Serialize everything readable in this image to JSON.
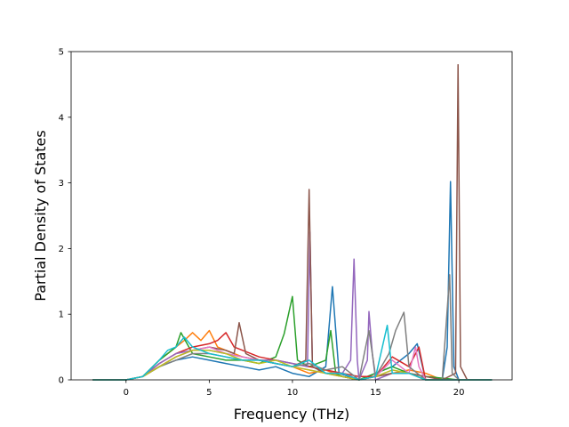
{
  "chart_data": {
    "type": "line",
    "xlabel": "Frequency (THz)",
    "ylabel": "Partial Density of States",
    "xlim": [
      -3.3,
      23.2
    ],
    "ylim": [
      0,
      5
    ],
    "xticks": [
      0,
      5,
      10,
      15,
      20
    ],
    "yticks": [
      0,
      1,
      2,
      3,
      4,
      5
    ],
    "grid": false,
    "legend": "none",
    "series": [
      {
        "color": "#1f77b4",
        "x": [
          -2,
          0,
          1,
          2,
          3,
          4,
          5,
          6,
          7,
          8,
          9,
          10,
          11,
          12,
          12.4,
          12.8,
          14,
          15,
          16,
          17,
          17.5,
          18,
          19,
          19.3,
          19.5,
          19.7,
          20,
          22
        ],
        "y": [
          0,
          0,
          0.05,
          0.2,
          0.3,
          0.35,
          0.3,
          0.25,
          0.2,
          0.15,
          0.2,
          0.1,
          0.05,
          0.2,
          1.42,
          0.1,
          0,
          0.1,
          0.2,
          0.4,
          0.55,
          0,
          0,
          0.5,
          3.02,
          0.2,
          0,
          0
        ]
      },
      {
        "color": "#ff7f0e",
        "x": [
          -2,
          0,
          1,
          2,
          3,
          3.5,
          4,
          4.5,
          5,
          5.5,
          6,
          7,
          8,
          9,
          10,
          11,
          12,
          13,
          14,
          15,
          16,
          17,
          18,
          19,
          20,
          22
        ],
        "y": [
          0,
          0,
          0.05,
          0.3,
          0.5,
          0.6,
          0.72,
          0.6,
          0.75,
          0.5,
          0.45,
          0.35,
          0.3,
          0.25,
          0.2,
          0.1,
          0.15,
          0.05,
          0,
          0.05,
          0.1,
          0.15,
          0.1,
          0,
          0,
          0
        ]
      },
      {
        "color": "#2ca02c",
        "x": [
          -2,
          0,
          1,
          2,
          3,
          3.3,
          4,
          5,
          6,
          7,
          8,
          9,
          9.5,
          10,
          10.3,
          11,
          12,
          12.3,
          12.6,
          13,
          14,
          15,
          16,
          17,
          18,
          20,
          22
        ],
        "y": [
          0,
          0,
          0.05,
          0.3,
          0.5,
          0.72,
          0.4,
          0.35,
          0.3,
          0.3,
          0.25,
          0.35,
          0.7,
          1.27,
          0.3,
          0.2,
          0.3,
          0.75,
          0.1,
          0.05,
          0,
          0.1,
          0.2,
          0.1,
          0.05,
          0,
          0
        ]
      },
      {
        "color": "#d62728",
        "x": [
          -2,
          0,
          1,
          2,
          3,
          4,
          5,
          5.5,
          6,
          6.5,
          7,
          8,
          9,
          10,
          11,
          12,
          13,
          14,
          15,
          16,
          17,
          17.6,
          18,
          20,
          22
        ],
        "y": [
          0,
          0,
          0.05,
          0.25,
          0.4,
          0.5,
          0.55,
          0.6,
          0.72,
          0.5,
          0.45,
          0.35,
          0.3,
          0.25,
          0.2,
          0.15,
          0.1,
          0.05,
          0.05,
          0.35,
          0.2,
          0.5,
          0,
          0,
          0
        ]
      },
      {
        "color": "#9467bd",
        "x": [
          -2,
          0,
          1,
          2,
          3,
          4,
          5,
          6,
          7,
          8,
          9,
          10,
          10.9,
          11.05,
          11.2,
          12,
          13,
          13.5,
          13.7,
          13.9,
          14,
          14.5,
          14.6,
          14.8,
          15,
          16,
          17,
          18,
          20,
          22
        ],
        "y": [
          0,
          0,
          0.05,
          0.25,
          0.4,
          0.45,
          0.45,
          0.4,
          0.35,
          0.3,
          0.3,
          0.25,
          0.2,
          2.25,
          0.2,
          0.1,
          0.1,
          0.3,
          1.84,
          0.3,
          0,
          0.3,
          1.04,
          0.4,
          0,
          0.1,
          0.1,
          0,
          0,
          0
        ]
      },
      {
        "color": "#8c564b",
        "x": [
          -2,
          0,
          1,
          2,
          3,
          4,
          5,
          6,
          6.5,
          6.8,
          7.2,
          8,
          9,
          10,
          10.8,
          11.0,
          11.2,
          12,
          13,
          14,
          15,
          16,
          17,
          18,
          19,
          19.8,
          19.95,
          20.1,
          20.5,
          22
        ],
        "y": [
          0,
          0,
          0.05,
          0.2,
          0.35,
          0.45,
          0.5,
          0.45,
          0.4,
          0.87,
          0.4,
          0.3,
          0.25,
          0.2,
          0.3,
          2.9,
          0.2,
          0.1,
          0.05,
          0,
          0.05,
          0.1,
          0.1,
          0.05,
          0,
          0.1,
          4.8,
          0.2,
          0,
          0
        ]
      },
      {
        "color": "#e377c2",
        "x": [
          -2,
          0,
          1,
          2,
          3,
          4,
          5,
          6,
          7,
          8,
          9,
          10,
          11,
          12,
          13,
          14,
          15,
          16,
          16.5,
          17,
          17.4,
          17.6,
          18,
          20,
          22
        ],
        "y": [
          0,
          0,
          0.05,
          0.2,
          0.35,
          0.45,
          0.5,
          0.4,
          0.35,
          0.3,
          0.25,
          0.2,
          0.15,
          0.1,
          0.1,
          0,
          0.05,
          0.3,
          0.2,
          0.1,
          0.5,
          0.2,
          0,
          0,
          0
        ]
      },
      {
        "color": "#7f7f7f",
        "x": [
          -2,
          0,
          1,
          2,
          3,
          4,
          5,
          6,
          7,
          8,
          9,
          10,
          11,
          12,
          13,
          14,
          14.6,
          15,
          15.8,
          16.2,
          16.7,
          17,
          18,
          19,
          19.45,
          19.6,
          20,
          22
        ],
        "y": [
          0,
          0,
          0.05,
          0.2,
          0.3,
          0.4,
          0.4,
          0.35,
          0.3,
          0.3,
          0.25,
          0.2,
          0.25,
          0.15,
          0.2,
          0,
          0.75,
          0.05,
          0.4,
          0.75,
          1.03,
          0.2,
          0,
          0,
          1.6,
          0.1,
          0,
          0
        ]
      },
      {
        "color": "#bcbd22",
        "x": [
          -2,
          0,
          1,
          2,
          3,
          4,
          5,
          6,
          7,
          8,
          9,
          10,
          11,
          12,
          13,
          14,
          15,
          16,
          17,
          18,
          20,
          22
        ],
        "y": [
          0,
          0,
          0.05,
          0.2,
          0.35,
          0.45,
          0.45,
          0.4,
          0.3,
          0.25,
          0.3,
          0.2,
          0.15,
          0.1,
          0.05,
          0,
          0.05,
          0.15,
          0.1,
          0,
          0,
          0
        ]
      },
      {
        "color": "#17becf",
        "x": [
          -2,
          0,
          1,
          2,
          2.5,
          3,
          3.5,
          4,
          5,
          6,
          7,
          8,
          9,
          10,
          11,
          12,
          13,
          14,
          15,
          15.7,
          16,
          17,
          18,
          20,
          22
        ],
        "y": [
          0,
          0,
          0.05,
          0.3,
          0.45,
          0.5,
          0.65,
          0.5,
          0.4,
          0.35,
          0.3,
          0.3,
          0.25,
          0.2,
          0.3,
          0.1,
          0.1,
          0,
          0.05,
          0.83,
          0.1,
          0.1,
          0,
          0,
          0
        ]
      }
    ]
  }
}
